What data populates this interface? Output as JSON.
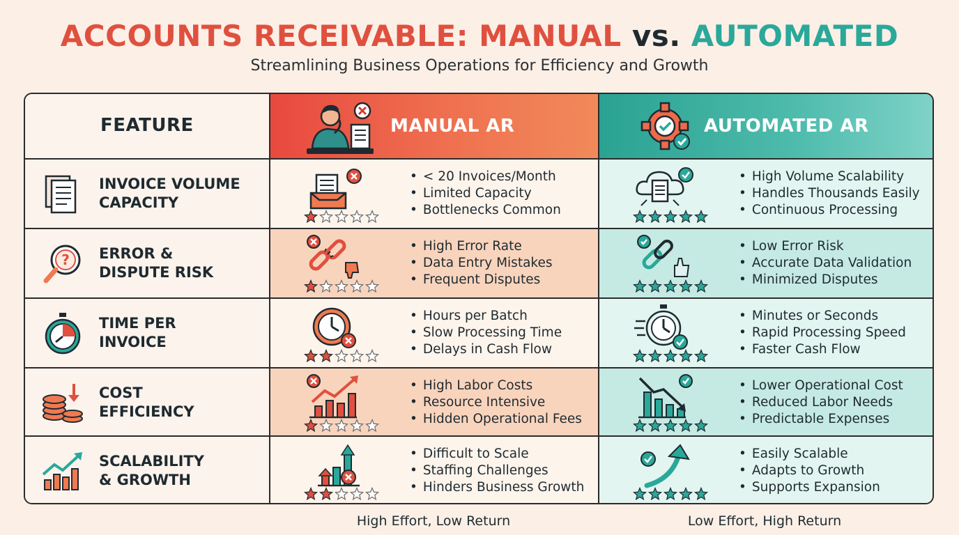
{
  "title": {
    "part1": "ACCOUNTS RECEIVABLE:",
    "part2": "MANUAL",
    "part3": "vs.",
    "part4": "AUTOMATED"
  },
  "subtitle": "Streamlining Business Operations for Efficiency and Growth",
  "colors": {
    "manual_accent": "#e0503f",
    "automated_accent": "#2aa89a",
    "dark": "#1f2a30",
    "background": "#fbefe6"
  },
  "headers": {
    "feature": "FEATURE",
    "manual": "MANUAL AR",
    "automated": "AUTOMATED AR"
  },
  "header_icons": {
    "manual": "stressed-person-icon",
    "automated": "gear-check-icon"
  },
  "rows": [
    {
      "feature_line1": "INVOICE VOLUME",
      "feature_line2": "CAPACITY",
      "feature_icon": "documents-icon",
      "manual": {
        "icon": "inbox-tray-x-icon",
        "rating": 1,
        "bullets": [
          "< 20 Invoices/Month",
          "Limited Capacity",
          "Bottlenecks Common"
        ]
      },
      "automated": {
        "icon": "cloud-document-check-icon",
        "rating": 5,
        "bullets": [
          "High Volume Scalability",
          "Handles Thousands Easily",
          "Continuous Processing"
        ]
      }
    },
    {
      "feature_line1": "ERROR &",
      "feature_line2": "DISPUTE RISK",
      "feature_icon": "magnifier-question-icon",
      "manual": {
        "icon": "broken-chain-thumbs-down-icon",
        "rating": 1,
        "bullets": [
          "High Error Rate",
          "Data Entry Mistakes",
          "Frequent Disputes"
        ]
      },
      "automated": {
        "icon": "chain-thumbs-up-icon",
        "rating": 5,
        "bullets": [
          "Low Error Risk",
          "Accurate Data Validation",
          "Minimized Disputes"
        ]
      }
    },
    {
      "feature_line1": "TIME PER",
      "feature_line2": "INVOICE",
      "feature_icon": "stopwatch-icon",
      "manual": {
        "icon": "clock-x-icon",
        "rating": 2,
        "bullets": [
          "Hours per Batch",
          "Slow Processing Time",
          "Delays in Cash Flow"
        ]
      },
      "automated": {
        "icon": "fast-stopwatch-check-icon",
        "rating": 5,
        "bullets": [
          "Minutes or Seconds",
          "Rapid Processing Speed",
          "Faster Cash Flow"
        ]
      }
    },
    {
      "feature_line1": "COST",
      "feature_line2": "EFFICIENCY",
      "feature_icon": "coins-arrow-down-icon",
      "manual": {
        "icon": "rising-cost-chart-x-icon",
        "rating": 1,
        "bullets": [
          "High Labor Costs",
          "Resource Intensive",
          "Hidden Operational Fees"
        ]
      },
      "automated": {
        "icon": "falling-cost-chart-check-icon",
        "rating": 5,
        "bullets": [
          "Lower Operational Cost",
          "Reduced Labor Needs",
          "Predictable Expenses"
        ]
      }
    },
    {
      "feature_line1": "SCALABILITY",
      "feature_line2": "& GROWTH",
      "feature_icon": "growth-chart-icon",
      "manual": {
        "icon": "blocked-growth-chart-icon",
        "rating": 2,
        "bullets": [
          "Difficult to Scale",
          "Staffing Challenges",
          "Hinders Business Growth"
        ]
      },
      "automated": {
        "icon": "upward-curve-arrow-check-icon",
        "rating": 5,
        "bullets": [
          "Easily Scalable",
          "Adapts to Growth",
          "Supports Expansion"
        ]
      }
    }
  ],
  "footers": {
    "manual": "High Effort, Low Return",
    "automated": "Low Effort, High Return"
  }
}
